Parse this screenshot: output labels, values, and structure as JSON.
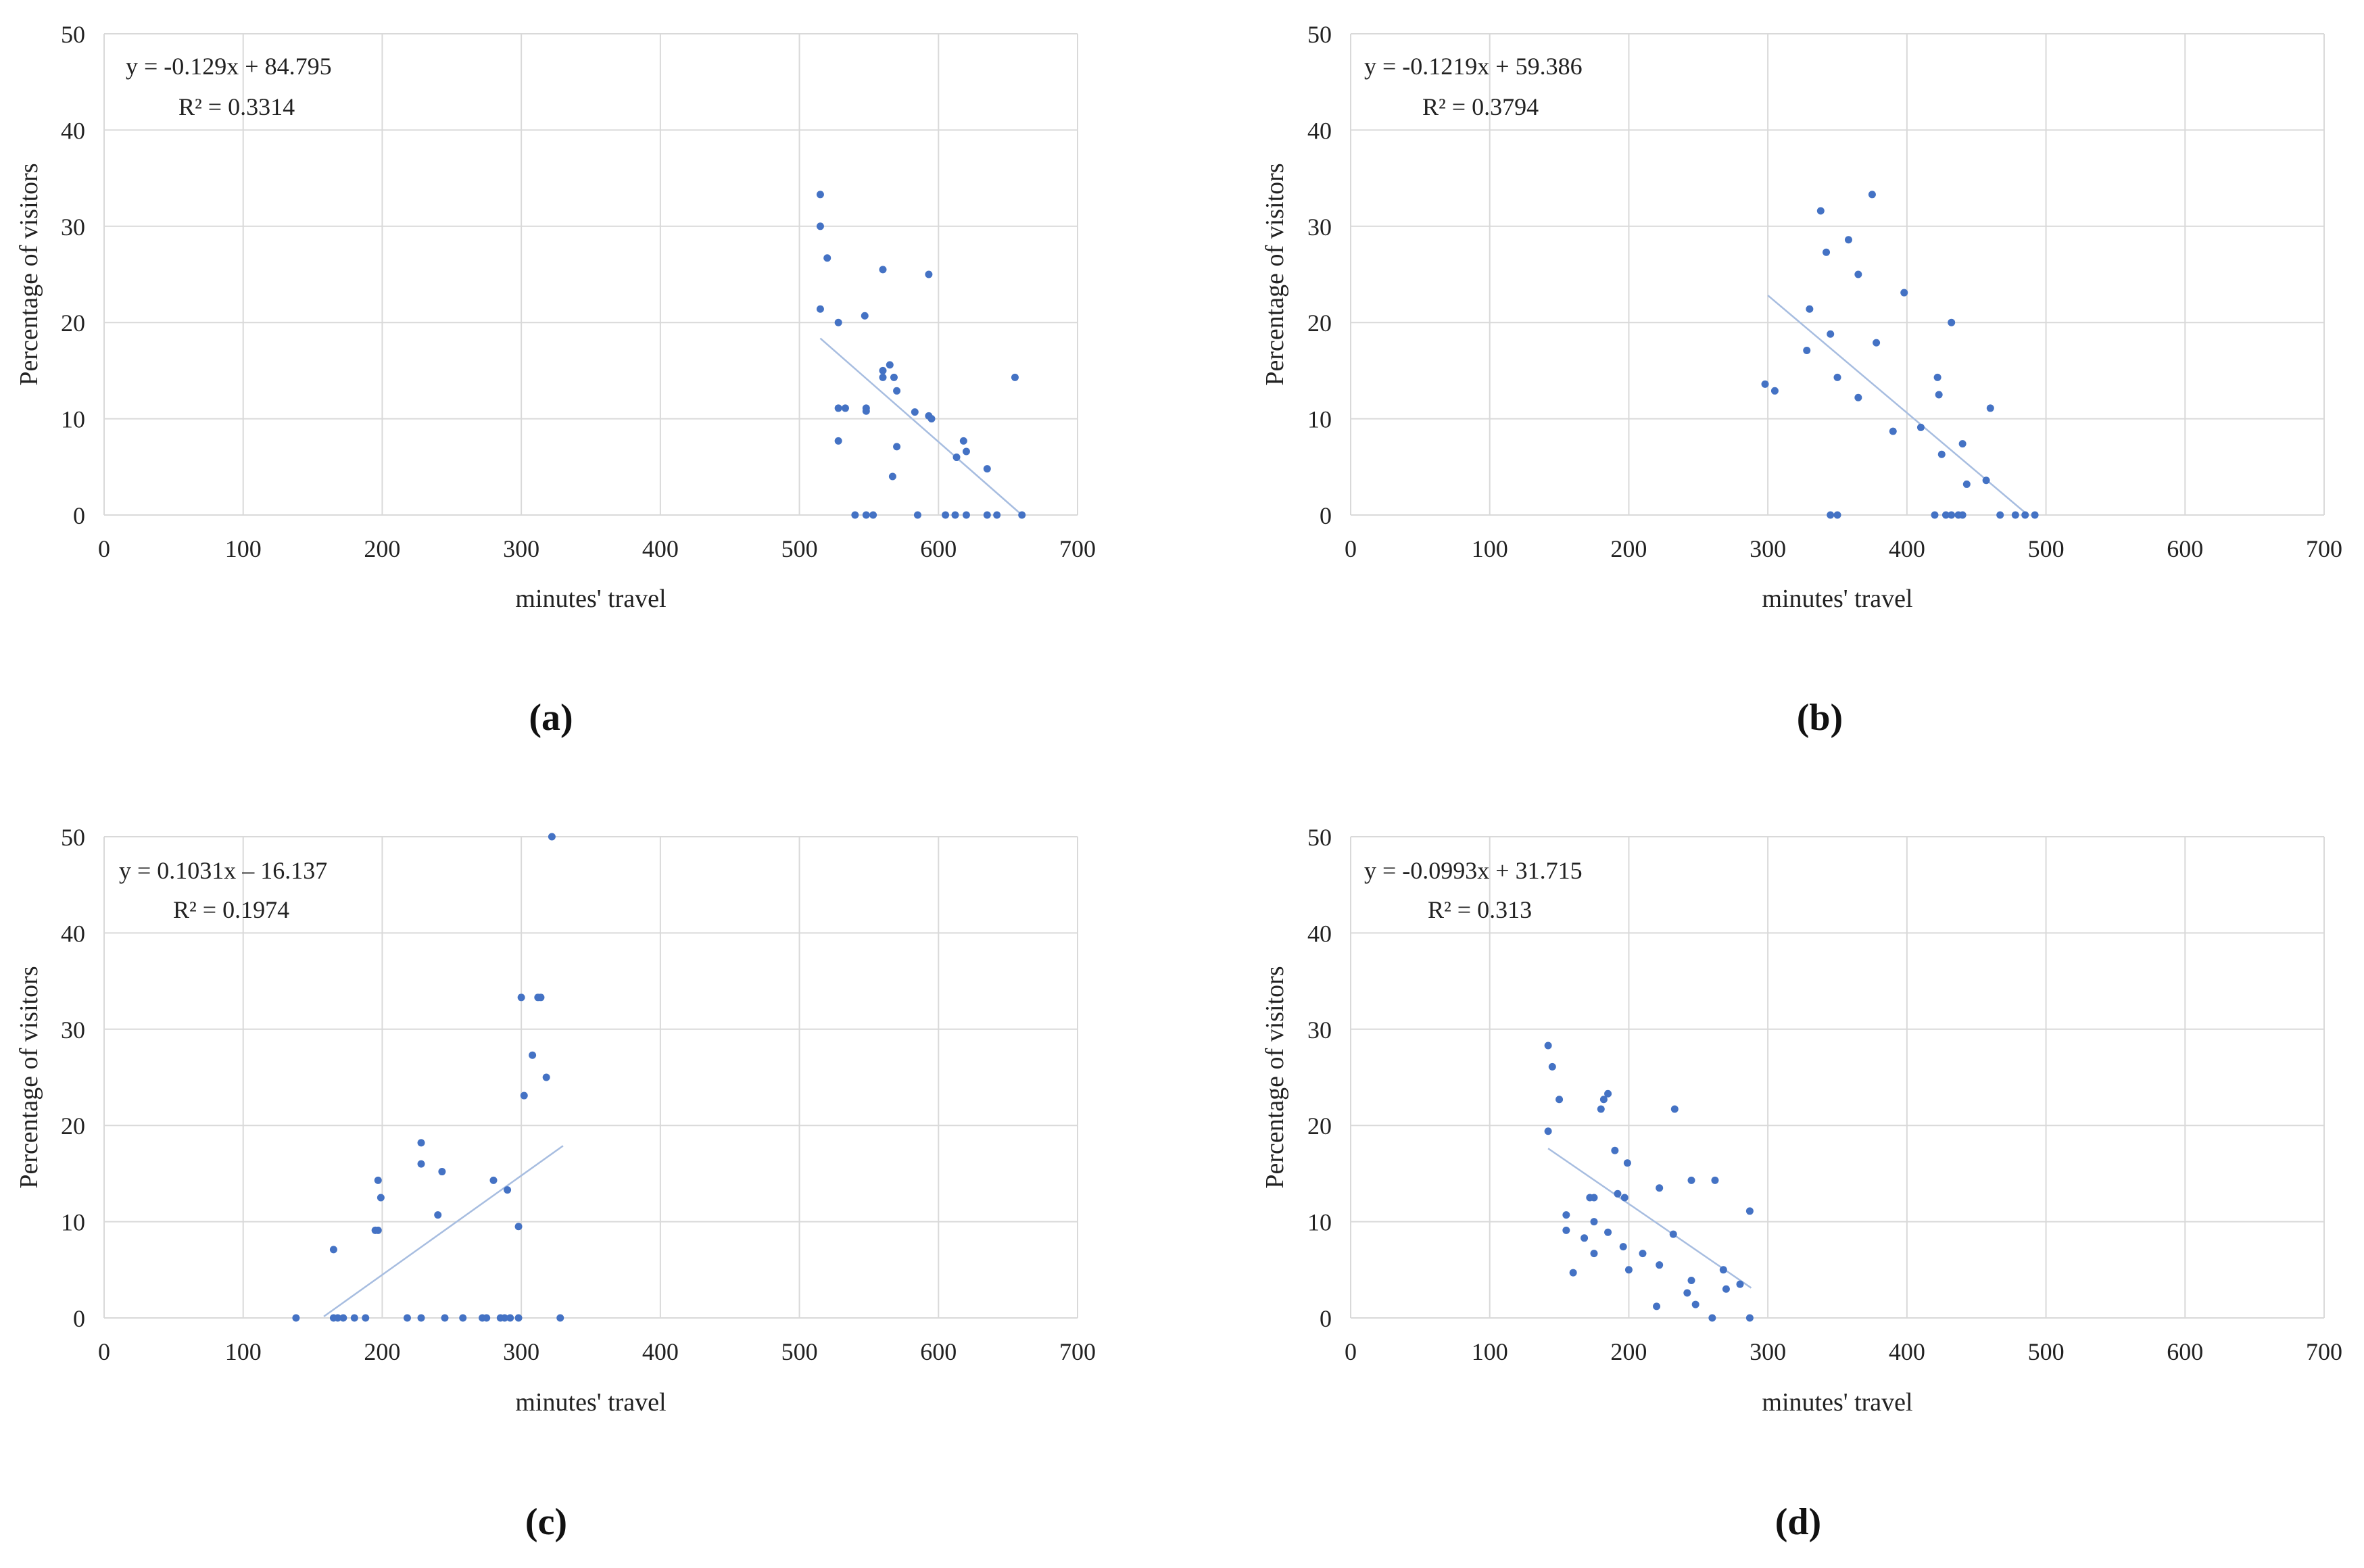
{
  "figure": {
    "panels": [
      "a",
      "b",
      "c",
      "d"
    ]
  },
  "colors": {
    "points": "#4472C4",
    "trendline": "#A7BDE0",
    "grid": "#D9D9D9",
    "text": "#222222"
  },
  "chart_data": [
    {
      "panel_label": "(a)",
      "type": "scatter",
      "xlabel": "minutes' travel",
      "ylabel": "Percentage of visitors",
      "xlim": [
        0,
        700
      ],
      "ylim": [
        0,
        50
      ],
      "xticks": [
        0,
        100,
        200,
        300,
        400,
        500,
        600,
        700
      ],
      "yticks": [
        0,
        10,
        20,
        30,
        40,
        50
      ],
      "equation": "y = -0.129x + 84.795",
      "r2": "R² = 0.3314",
      "trendline": {
        "x": [
          515,
          660
        ],
        "y": [
          18.36,
          0.0
        ]
      },
      "points": [
        [
          515,
          33.3
        ],
        [
          515,
          30.0
        ],
        [
          520,
          26.7
        ],
        [
          515,
          21.4
        ],
        [
          528,
          20.0
        ],
        [
          547,
          20.7
        ],
        [
          560,
          25.5
        ],
        [
          593,
          25.0
        ],
        [
          560,
          15.0
        ],
        [
          560,
          14.3
        ],
        [
          565,
          15.6
        ],
        [
          568,
          14.3
        ],
        [
          570,
          12.9
        ],
        [
          528,
          11.1
        ],
        [
          533,
          11.1
        ],
        [
          548,
          11.1
        ],
        [
          548,
          10.8
        ],
        [
          583,
          10.7
        ],
        [
          593,
          10.3
        ],
        [
          595,
          10.0
        ],
        [
          528,
          7.7
        ],
        [
          570,
          7.1
        ],
        [
          567,
          4.0
        ],
        [
          618,
          7.7
        ],
        [
          620,
          6.6
        ],
        [
          613,
          6.0
        ],
        [
          635,
          4.8
        ],
        [
          655,
          14.3
        ],
        [
          540,
          0.0
        ],
        [
          548,
          0.0
        ],
        [
          553,
          0.0
        ],
        [
          585,
          0.0
        ],
        [
          605,
          0.0
        ],
        [
          612,
          0.0
        ],
        [
          620,
          0.0
        ],
        [
          635,
          0.0
        ],
        [
          642,
          0.0
        ],
        [
          660,
          0.0
        ]
      ]
    },
    {
      "panel_label": "(b)",
      "type": "scatter",
      "xlabel": "minutes' travel",
      "ylabel": "Percentage of visitors",
      "xlim": [
        0,
        700
      ],
      "ylim": [
        0,
        50
      ],
      "xticks": [
        0,
        100,
        200,
        300,
        400,
        500,
        600,
        700
      ],
      "yticks": [
        0,
        10,
        20,
        30,
        40,
        50
      ],
      "equation": "y = -0.1219x + 59.386",
      "r2": "R² = 0.3794",
      "trendline": {
        "x": [
          300,
          487
        ],
        "y": [
          22.82,
          0.0
        ]
      },
      "points": [
        [
          298,
          13.6
        ],
        [
          305,
          12.9
        ],
        [
          328,
          17.1
        ],
        [
          330,
          21.4
        ],
        [
          338,
          31.6
        ],
        [
          342,
          27.3
        ],
        [
          345,
          18.8
        ],
        [
          350,
          14.3
        ],
        [
          358,
          28.6
        ],
        [
          365,
          25.0
        ],
        [
          365,
          12.2
        ],
        [
          375,
          33.3
        ],
        [
          378,
          17.9
        ],
        [
          390,
          8.7
        ],
        [
          398,
          23.1
        ],
        [
          410,
          9.1
        ],
        [
          422,
          14.3
        ],
        [
          423,
          12.5
        ],
        [
          425,
          6.3
        ],
        [
          432,
          20.0
        ],
        [
          440,
          7.4
        ],
        [
          443,
          3.2
        ],
        [
          457,
          3.6
        ],
        [
          460,
          11.1
        ],
        [
          345,
          0.0
        ],
        [
          350,
          0.0
        ],
        [
          420,
          0.0
        ],
        [
          428,
          0.0
        ],
        [
          432,
          0.0
        ],
        [
          437,
          0.0
        ],
        [
          440,
          0.0
        ],
        [
          467,
          0.0
        ],
        [
          478,
          0.0
        ],
        [
          485,
          0.0
        ],
        [
          492,
          0.0
        ]
      ]
    },
    {
      "panel_label": "(c)",
      "type": "scatter",
      "xlabel": "minutes' travel",
      "ylabel": "Percentage of visitors",
      "xlim": [
        0,
        700
      ],
      "ylim": [
        0,
        50
      ],
      "xticks": [
        0,
        100,
        200,
        300,
        400,
        500,
        600,
        700
      ],
      "yticks": [
        0,
        10,
        20,
        30,
        40,
        50
      ],
      "equation": "y = 0.1031x – 16.137",
      "r2": "R² = 0.1974",
      "trendline": {
        "x": [
          158,
          330
        ],
        "y": [
          0.15,
          17.88
        ]
      },
      "points": [
        [
          138,
          0.0
        ],
        [
          165,
          0.0
        ],
        [
          168,
          0.0
        ],
        [
          172,
          0.0
        ],
        [
          180,
          0.0
        ],
        [
          188,
          0.0
        ],
        [
          165,
          7.1
        ],
        [
          195,
          9.1
        ],
        [
          197,
          9.1
        ],
        [
          197,
          14.3
        ],
        [
          199,
          12.5
        ],
        [
          218,
          0.0
        ],
        [
          228,
          0.0
        ],
        [
          228,
          16.0
        ],
        [
          228,
          18.2
        ],
        [
          240,
          10.7
        ],
        [
          243,
          15.2
        ],
        [
          245,
          0.0
        ],
        [
          258,
          0.0
        ],
        [
          272,
          0.0
        ],
        [
          275,
          0.0
        ],
        [
          280,
          14.3
        ],
        [
          285,
          0.0
        ],
        [
          288,
          0.0
        ],
        [
          290,
          13.3
        ],
        [
          292,
          0.0
        ],
        [
          298,
          0.0
        ],
        [
          298,
          9.5
        ],
        [
          300,
          33.3
        ],
        [
          302,
          23.1
        ],
        [
          308,
          27.3
        ],
        [
          312,
          33.3
        ],
        [
          314,
          33.3
        ],
        [
          318,
          25.0
        ],
        [
          322,
          50.0
        ],
        [
          328,
          0.0
        ]
      ]
    },
    {
      "panel_label": "(d)",
      "type": "scatter",
      "xlabel": "minutes' travel",
      "ylabel": "Percentage of visitors",
      "xlim": [
        0,
        700
      ],
      "ylim": [
        0,
        50
      ],
      "xticks": [
        0,
        100,
        200,
        300,
        400,
        500,
        600,
        700
      ],
      "yticks": [
        0,
        10,
        20,
        30,
        40,
        50
      ],
      "equation": "y = -0.0993x + 31.715",
      "r2": "R² = 0.313",
      "trendline": {
        "x": [
          142,
          288
        ],
        "y": [
          17.61,
          3.12
        ]
      },
      "points": [
        [
          142,
          28.3
        ],
        [
          145,
          26.1
        ],
        [
          150,
          22.7
        ],
        [
          142,
          19.4
        ],
        [
          155,
          10.7
        ],
        [
          155,
          9.1
        ],
        [
          160,
          4.7
        ],
        [
          168,
          8.3
        ],
        [
          172,
          12.5
        ],
        [
          175,
          12.5
        ],
        [
          175,
          6.7
        ],
        [
          175,
          10.0
        ],
        [
          180,
          21.7
        ],
        [
          182,
          22.7
        ],
        [
          185,
          23.3
        ],
        [
          185,
          8.9
        ],
        [
          190,
          17.4
        ],
        [
          192,
          12.9
        ],
        [
          196,
          7.4
        ],
        [
          197,
          12.5
        ],
        [
          199,
          16.1
        ],
        [
          200,
          5.0
        ],
        [
          210,
          6.7
        ],
        [
          220,
          1.2
        ],
        [
          222,
          13.5
        ],
        [
          222,
          5.5
        ],
        [
          232,
          8.7
        ],
        [
          233,
          21.7
        ],
        [
          242,
          2.6
        ],
        [
          245,
          14.3
        ],
        [
          245,
          3.9
        ],
        [
          248,
          1.4
        ],
        [
          260,
          0.0
        ],
        [
          262,
          14.3
        ],
        [
          268,
          5.0
        ],
        [
          270,
          3.0
        ],
        [
          280,
          3.5
        ],
        [
          287,
          11.1
        ],
        [
          287,
          0.0
        ]
      ]
    }
  ]
}
